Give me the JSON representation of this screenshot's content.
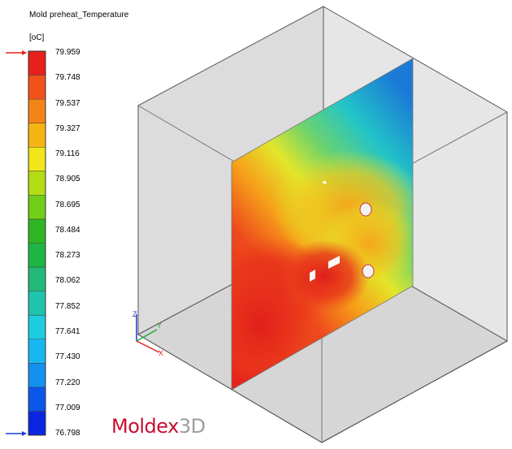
{
  "legend": {
    "title": "Mold preheat_Temperature",
    "unit": "[oC]",
    "ticks": [
      "79.959",
      "79.748",
      "79.537",
      "79.327",
      "79.116",
      "78.905",
      "78.695",
      "78.484",
      "78.273",
      "78.062",
      "77.852",
      "77.641",
      "77.430",
      "77.220",
      "77.009",
      "76.798"
    ],
    "bands": [
      "#e8201c",
      "#f0521a",
      "#f58418",
      "#f6b413",
      "#f0e61a",
      "#b4dc14",
      "#72cd17",
      "#2fb422",
      "#1fb544",
      "#23b97a",
      "#1fc4ae",
      "#1ccde0",
      "#18b7f2",
      "#1490ee",
      "#0b57ea",
      "#0a26e2"
    ],
    "marker_color": "#e8201c",
    "min_marker_color": "#1f3ed8"
  },
  "axes": {
    "z": "Z",
    "y": "Y",
    "x": "X"
  },
  "brand": {
    "name": "Moldex",
    "suffix": "3D"
  }
}
